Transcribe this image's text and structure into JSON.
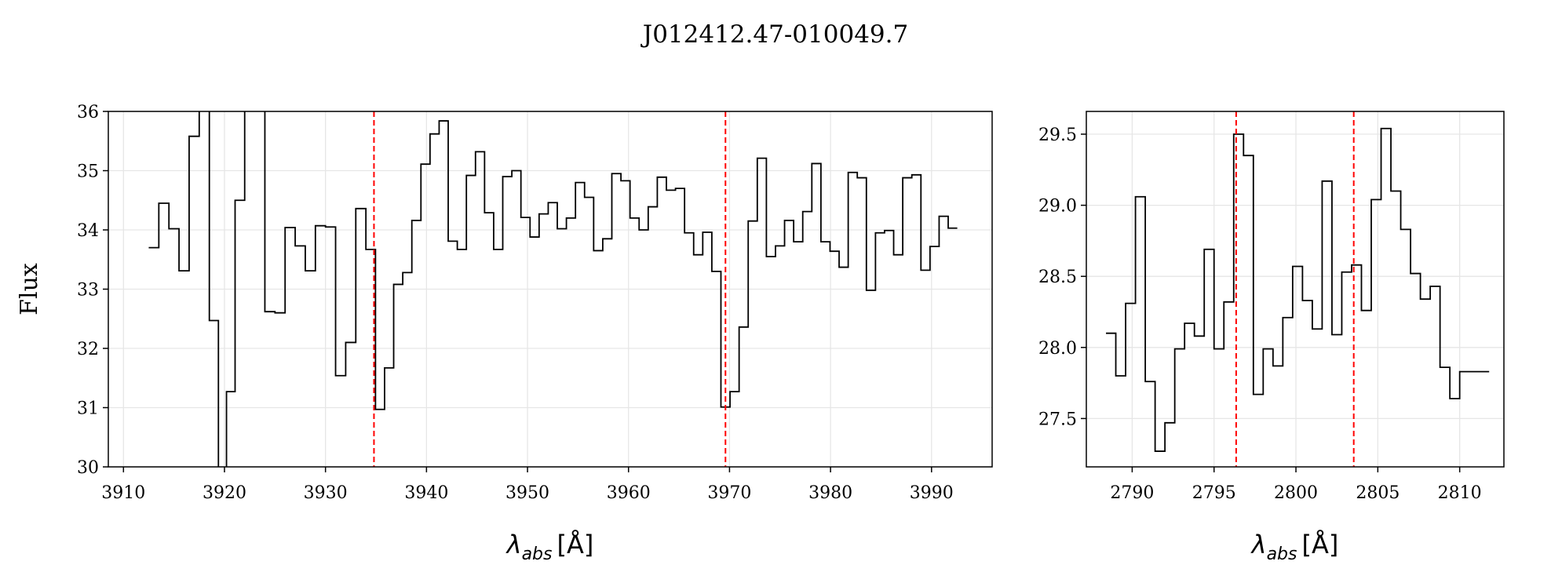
{
  "figure": {
    "title": "J012412.47-010049.7"
  },
  "chart_data": [
    {
      "type": "line",
      "step": true,
      "title": "",
      "xlabel": "λ_abs [Å]",
      "xlabel_main": "λ",
      "xlabel_sub": "abs",
      "xlabel_unit": "[Å]",
      "ylabel": "Flux",
      "xlim": [
        3908.5,
        3996
      ],
      "ylim": [
        30,
        36
      ],
      "xticks": [
        3910,
        3920,
        3930,
        3940,
        3950,
        3960,
        3970,
        3980,
        3990
      ],
      "xtick_labels": [
        "3910",
        "3920",
        "3930",
        "3940",
        "3950",
        "3960",
        "3970",
        "3980",
        "3990"
      ],
      "yticks": [
        30,
        31,
        32,
        33,
        34,
        35,
        36
      ],
      "ytick_labels": [
        "30",
        "31",
        "32",
        "33",
        "34",
        "35",
        "36"
      ],
      "grid": true,
      "line_color": "#000000",
      "marker_color": "#ff0000",
      "vlines": [
        3934.8,
        3969.6
      ],
      "series": [
        {
          "x": [
            3913.0,
            3914.0,
            3915.0,
            3916.0,
            3917.0,
            3918.0,
            3919.0,
            3919.8,
            3920.6,
            3921.5,
            3922.5,
            3923.5,
            3924.5,
            3925.5,
            3926.5,
            3927.5,
            3928.5,
            3929.5,
            3930.5,
            3931.5,
            3932.5,
            3933.5,
            3934.5,
            3935.4,
            3936.3,
            3937.2,
            3938.1,
            3939.0,
            3939.9,
            3940.8,
            3941.7,
            3942.6,
            3943.5,
            3944.4,
            3945.3,
            3946.2,
            3947.1,
            3948.0,
            3948.9,
            3949.8,
            3950.7,
            3951.6,
            3952.5,
            3953.4,
            3954.3,
            3955.2,
            3956.1,
            3957.0,
            3957.9,
            3958.8,
            3959.7,
            3960.6,
            3961.5,
            3962.4,
            3963.3,
            3964.2,
            3965.1,
            3966.0,
            3966.9,
            3967.8,
            3968.7,
            3969.6,
            3970.5,
            3971.4,
            3972.3,
            3973.2,
            3974.1,
            3975.0,
            3975.9,
            3976.8,
            3977.7,
            3978.6,
            3979.5,
            3980.4,
            3981.3,
            3982.2,
            3983.1,
            3984.0,
            3984.9,
            3985.8,
            3986.7,
            3987.6,
            3988.5,
            3989.4,
            3990.3,
            3991.2,
            3992.1
          ],
          "y": [
            33.7,
            34.45,
            34.02,
            33.31,
            35.58,
            36.5,
            32.47,
            29.6,
            31.27,
            34.5,
            37.0,
            37.0,
            32.62,
            32.6,
            34.04,
            33.73,
            33.31,
            34.07,
            34.05,
            31.54,
            32.1,
            34.36,
            33.67,
            30.97,
            31.67,
            33.08,
            33.28,
            34.16,
            35.11,
            35.62,
            35.84,
            33.81,
            33.67,
            34.92,
            35.32,
            34.29,
            33.67,
            34.9,
            35.0,
            34.21,
            33.88,
            34.27,
            34.46,
            34.02,
            34.2,
            34.8,
            34.55,
            33.65,
            33.85,
            34.95,
            34.83,
            34.2,
            34.0,
            34.39,
            34.89,
            34.67,
            34.7,
            33.95,
            33.58,
            33.96,
            33.3,
            31.01,
            31.27,
            32.36,
            34.15,
            35.21,
            33.55,
            33.73,
            34.16,
            33.8,
            34.31,
            35.12,
            33.8,
            33.64,
            33.37,
            34.97,
            34.88,
            32.98,
            33.95,
            33.99,
            33.58,
            34.88,
            34.93,
            33.32,
            33.72,
            34.23,
            34.03
          ]
        }
      ]
    },
    {
      "type": "line",
      "step": true,
      "title": "",
      "xlabel": "λ_abs [Å]",
      "xlabel_main": "λ",
      "xlabel_sub": "abs",
      "xlabel_unit": "[Å]",
      "ylabel": "",
      "xlim": [
        2787.2,
        2812.7
      ],
      "ylim": [
        27.16,
        29.66
      ],
      "xticks": [
        2790,
        2795,
        2800,
        2805,
        2810
      ],
      "xtick_labels": [
        "2790",
        "2795",
        "2800",
        "2805",
        "2810"
      ],
      "yticks": [
        27.5,
        28.0,
        28.5,
        29.0,
        29.5
      ],
      "ytick_labels": [
        "27.5",
        "28.0",
        "28.5",
        "29.0",
        "29.5"
      ],
      "grid": true,
      "line_color": "#000000",
      "marker_color": "#ff0000",
      "vlines": [
        2796.35,
        2803.53
      ],
      "series": [
        {
          "x": [
            2788.7,
            2789.3,
            2789.9,
            2790.5,
            2791.1,
            2791.7,
            2792.3,
            2792.9,
            2793.5,
            2794.1,
            2794.7,
            2795.3,
            2795.9,
            2796.5,
            2797.1,
            2797.7,
            2798.3,
            2798.9,
            2799.5,
            2800.1,
            2800.7,
            2801.3,
            2801.9,
            2802.5,
            2803.1,
            2803.7,
            2804.3,
            2804.9,
            2805.5,
            2806.1,
            2806.7,
            2807.3,
            2807.9,
            2808.5,
            2809.1,
            2809.7,
            2810.3,
            2810.9,
            2811.5
          ],
          "y": [
            28.1,
            27.8,
            28.31,
            29.06,
            27.76,
            27.27,
            27.47,
            27.99,
            28.17,
            28.08,
            28.69,
            27.99,
            28.32,
            29.5,
            29.35,
            27.67,
            27.99,
            27.87,
            28.21,
            28.57,
            28.33,
            28.13,
            29.17,
            28.09,
            28.53,
            28.58,
            28.26,
            29.04,
            29.54,
            29.1,
            28.83,
            28.52,
            28.34,
            28.43,
            27.86,
            27.64,
            27.83,
            27.83,
            27.83
          ]
        }
      ]
    }
  ]
}
